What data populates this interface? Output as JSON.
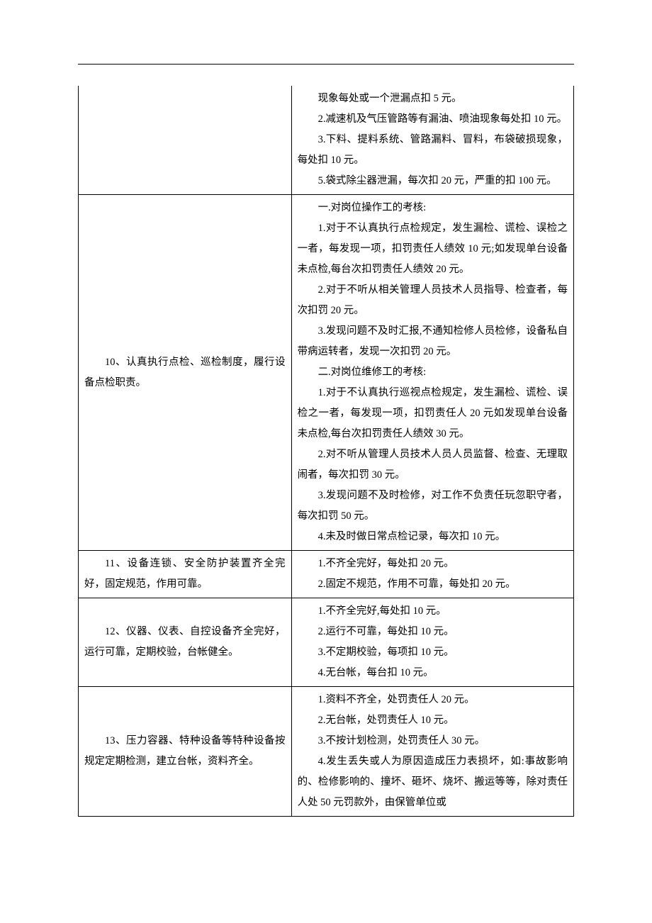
{
  "rows": [
    {
      "left": [],
      "right": [
        "现象每处或一个泄漏点扣 5 元。",
        "2.减速机及气压管路等有漏油、喷油现象每处扣 10 元。",
        "3.下料、提料系统、管路漏料、冒料，布袋破损现象，每处扣 10 元。",
        "5.袋式除尘器泄漏，每次扣 20 元，严重的扣 100 元。"
      ]
    },
    {
      "left": [
        "10、认真执行点检、巡检制度，履行设备点检职责。"
      ],
      "right": [
        "一.对岗位操作工的考核:",
        "1.对于不认真执行点检规定，发生漏检、谎检、误检之一者，每发现一项，扣罚责任人绩效 10 元;如发现单台设备未点检,每台次扣罚责任人绩效 20 元。",
        "2.对于不听从相关管理人员技术人员指导、检查者，每次扣罚 20 元。",
        "3.发现问题不及时汇报,不通知检修人员检修，设备私自带病运转者，发现一次扣罚 20 元。",
        "二.对岗位维修工的考核:",
        "1.对于不认真执行巡视点检规定，发生漏检、谎检、误检之一者，每发现一项，扣罚责任人 20 元如发现单台设备未点检,每台次扣罚责任人绩效 30 元。",
        "2.对不听从管理人员技术人员人员监督、检查、无理取闹者，每次扣罚 30 元。",
        "3.发现问题不及时检修，对工作不负责任玩忽职守者，每次扣罚 50 元。",
        "4.未及时做日常点检记录，每次扣 10 元。"
      ]
    },
    {
      "left": [
        "11、设备连锁、安全防护装置齐全完好，固定规范，作用可靠。"
      ],
      "right": [
        "1.不齐全完好，每处扣 20 元。",
        "2.固定不规范，作用不可靠，每处扣 20 元。"
      ]
    },
    {
      "left": [
        "12、仪器、仪表、自控设备齐全完好，运行可靠，定期校验，台帐健全。"
      ],
      "right": [
        "1.不齐全完好,每处扣 10 元。",
        "2.运行不可靠，每处扣 10 元。",
        "3.不定期校验，每项扣 10 元。",
        "4.无台帐，每台扣 10 元。"
      ]
    },
    {
      "left": [
        "13、压力容器、特种设备等特种设备按规定定期检测，建立台帐，资料齐全。"
      ],
      "right": [
        "1.资料不齐全，处罚责任人 20 元。",
        "2.无台帐，处罚责任人 10 元。",
        "3.不按计划检测，处罚责任人 30 元。",
        "4.发生丢失或人为原因造成压力表损坏，如:事故影响的、检修影响的、撞坏、砸坏、烧坏、搬运等等，除对责任人处 50 元罚款外，由保管单位或"
      ]
    }
  ]
}
